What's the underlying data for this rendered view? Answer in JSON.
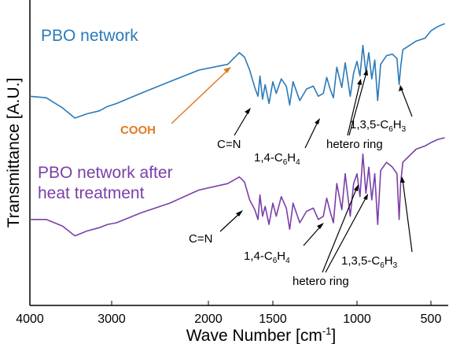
{
  "chart_data": {
    "type": "line",
    "xlabel": "Wave Number [cm",
    "xlabel_sup": "-1",
    "xlabel_end": "]",
    "ylabel": "Transmittance [A.U.]",
    "xlim": [
      4000,
      400
    ],
    "x_reversed": true,
    "x_ticks": [
      "4000",
      "3000",
      "2000",
      "1500",
      "1000",
      "500"
    ],
    "series": [
      {
        "name": "PBO network",
        "color": "#2a7ab8",
        "points": [
          [
            4000,
            0.5
          ],
          [
            3800,
            0.49
          ],
          [
            3600,
            0.42
          ],
          [
            3450,
            0.35
          ],
          [
            3300,
            0.38
          ],
          [
            3150,
            0.4
          ],
          [
            3050,
            0.43
          ],
          [
            2950,
            0.45
          ],
          [
            2700,
            0.52
          ],
          [
            2400,
            0.6
          ],
          [
            2100,
            0.68
          ],
          [
            1850,
            0.72
          ],
          [
            1760,
            0.8
          ],
          [
            1720,
            0.77
          ],
          [
            1680,
            0.68
          ],
          [
            1640,
            0.56
          ],
          [
            1615,
            0.5
          ],
          [
            1600,
            0.64
          ],
          [
            1580,
            0.48
          ],
          [
            1560,
            0.58
          ],
          [
            1530,
            0.45
          ],
          [
            1500,
            0.6
          ],
          [
            1480,
            0.52
          ],
          [
            1450,
            0.62
          ],
          [
            1420,
            0.57
          ],
          [
            1400,
            0.44
          ],
          [
            1380,
            0.6
          ],
          [
            1340,
            0.47
          ],
          [
            1300,
            0.55
          ],
          [
            1260,
            0.57
          ],
          [
            1230,
            0.5
          ],
          [
            1200,
            0.52
          ],
          [
            1180,
            0.63
          ],
          [
            1160,
            0.55
          ],
          [
            1140,
            0.49
          ],
          [
            1120,
            0.7
          ],
          [
            1090,
            0.56
          ],
          [
            1070,
            0.73
          ],
          [
            1040,
            0.5
          ],
          [
            1020,
            0.66
          ],
          [
            1000,
            0.74
          ],
          [
            980,
            0.64
          ],
          [
            960,
            0.85
          ],
          [
            940,
            0.66
          ],
          [
            920,
            0.8
          ],
          [
            900,
            0.62
          ],
          [
            880,
            0.75
          ],
          [
            860,
            0.47
          ],
          [
            840,
            0.72
          ],
          [
            800,
            0.78
          ],
          [
            760,
            0.79
          ],
          [
            730,
            0.76
          ],
          [
            715,
            0.58
          ],
          [
            705,
            0.7
          ],
          [
            690,
            0.82
          ],
          [
            600,
            0.88
          ],
          [
            540,
            0.9
          ],
          [
            500,
            0.95
          ],
          [
            460,
            0.98
          ],
          [
            420,
            1.0
          ]
        ]
      },
      {
        "name": "PBO network after heat treatment",
        "color": "#7a3fa8",
        "points": [
          [
            4000,
            0.5
          ],
          [
            3800,
            0.5
          ],
          [
            3600,
            0.46
          ],
          [
            3450,
            0.4
          ],
          [
            3300,
            0.43
          ],
          [
            3150,
            0.45
          ],
          [
            3050,
            0.47
          ],
          [
            2950,
            0.48
          ],
          [
            2700,
            0.54
          ],
          [
            2400,
            0.6
          ],
          [
            2100,
            0.68
          ],
          [
            1850,
            0.72
          ],
          [
            1760,
            0.76
          ],
          [
            1720,
            0.73
          ],
          [
            1680,
            0.62
          ],
          [
            1640,
            0.56
          ],
          [
            1615,
            0.5
          ],
          [
            1600,
            0.65
          ],
          [
            1580,
            0.52
          ],
          [
            1560,
            0.58
          ],
          [
            1530,
            0.47
          ],
          [
            1500,
            0.6
          ],
          [
            1480,
            0.52
          ],
          [
            1450,
            0.64
          ],
          [
            1420,
            0.57
          ],
          [
            1400,
            0.44
          ],
          [
            1380,
            0.6
          ],
          [
            1340,
            0.48
          ],
          [
            1300,
            0.55
          ],
          [
            1260,
            0.57
          ],
          [
            1230,
            0.5
          ],
          [
            1200,
            0.52
          ],
          [
            1180,
            0.63
          ],
          [
            1160,
            0.55
          ],
          [
            1140,
            0.48
          ],
          [
            1120,
            0.72
          ],
          [
            1090,
            0.56
          ],
          [
            1070,
            0.78
          ],
          [
            1040,
            0.52
          ],
          [
            1020,
            0.72
          ],
          [
            1000,
            0.78
          ],
          [
            980,
            0.64
          ],
          [
            960,
            0.9
          ],
          [
            940,
            0.66
          ],
          [
            920,
            0.82
          ],
          [
            900,
            0.62
          ],
          [
            880,
            0.78
          ],
          [
            860,
            0.47
          ],
          [
            840,
            0.8
          ],
          [
            800,
            0.85
          ],
          [
            760,
            0.82
          ],
          [
            730,
            0.78
          ],
          [
            715,
            0.5
          ],
          [
            705,
            0.72
          ],
          [
            690,
            0.85
          ],
          [
            600,
            0.93
          ],
          [
            540,
            0.95
          ],
          [
            500,
            0.97
          ],
          [
            460,
            0.99
          ],
          [
            420,
            1.0
          ]
        ]
      }
    ],
    "annotations": {
      "top": {
        "title": "PBO network",
        "cooh": "COOH",
        "cn": "C=N",
        "c6h4_pre": "1,4-C",
        "c6h4_sub1": "6",
        "c6h4_mid": "H",
        "c6h4_sub2": "4",
        "hetero": "hetero ring",
        "c6h3_pre": "1,3,5-C",
        "c6h3_sub1": "6",
        "c6h3_mid": "H",
        "c6h3_sub2": "3"
      },
      "bottom": {
        "title_line1": "PBO network after",
        "title_line2": "heat treatment",
        "cn": "C=N",
        "c6h4_pre": "1,4-C",
        "c6h4_sub1": "6",
        "c6h4_mid": "H",
        "c6h4_sub2": "4",
        "hetero": "hetero ring",
        "c6h3_pre": "1,3,5-C",
        "c6h3_sub1": "6",
        "c6h3_mid": "H",
        "c6h3_sub2": "3"
      }
    },
    "colors": {
      "blue": "#2a7ab8",
      "purple": "#7a3fa8",
      "orange": "#e07b24"
    },
    "grid": false
  }
}
